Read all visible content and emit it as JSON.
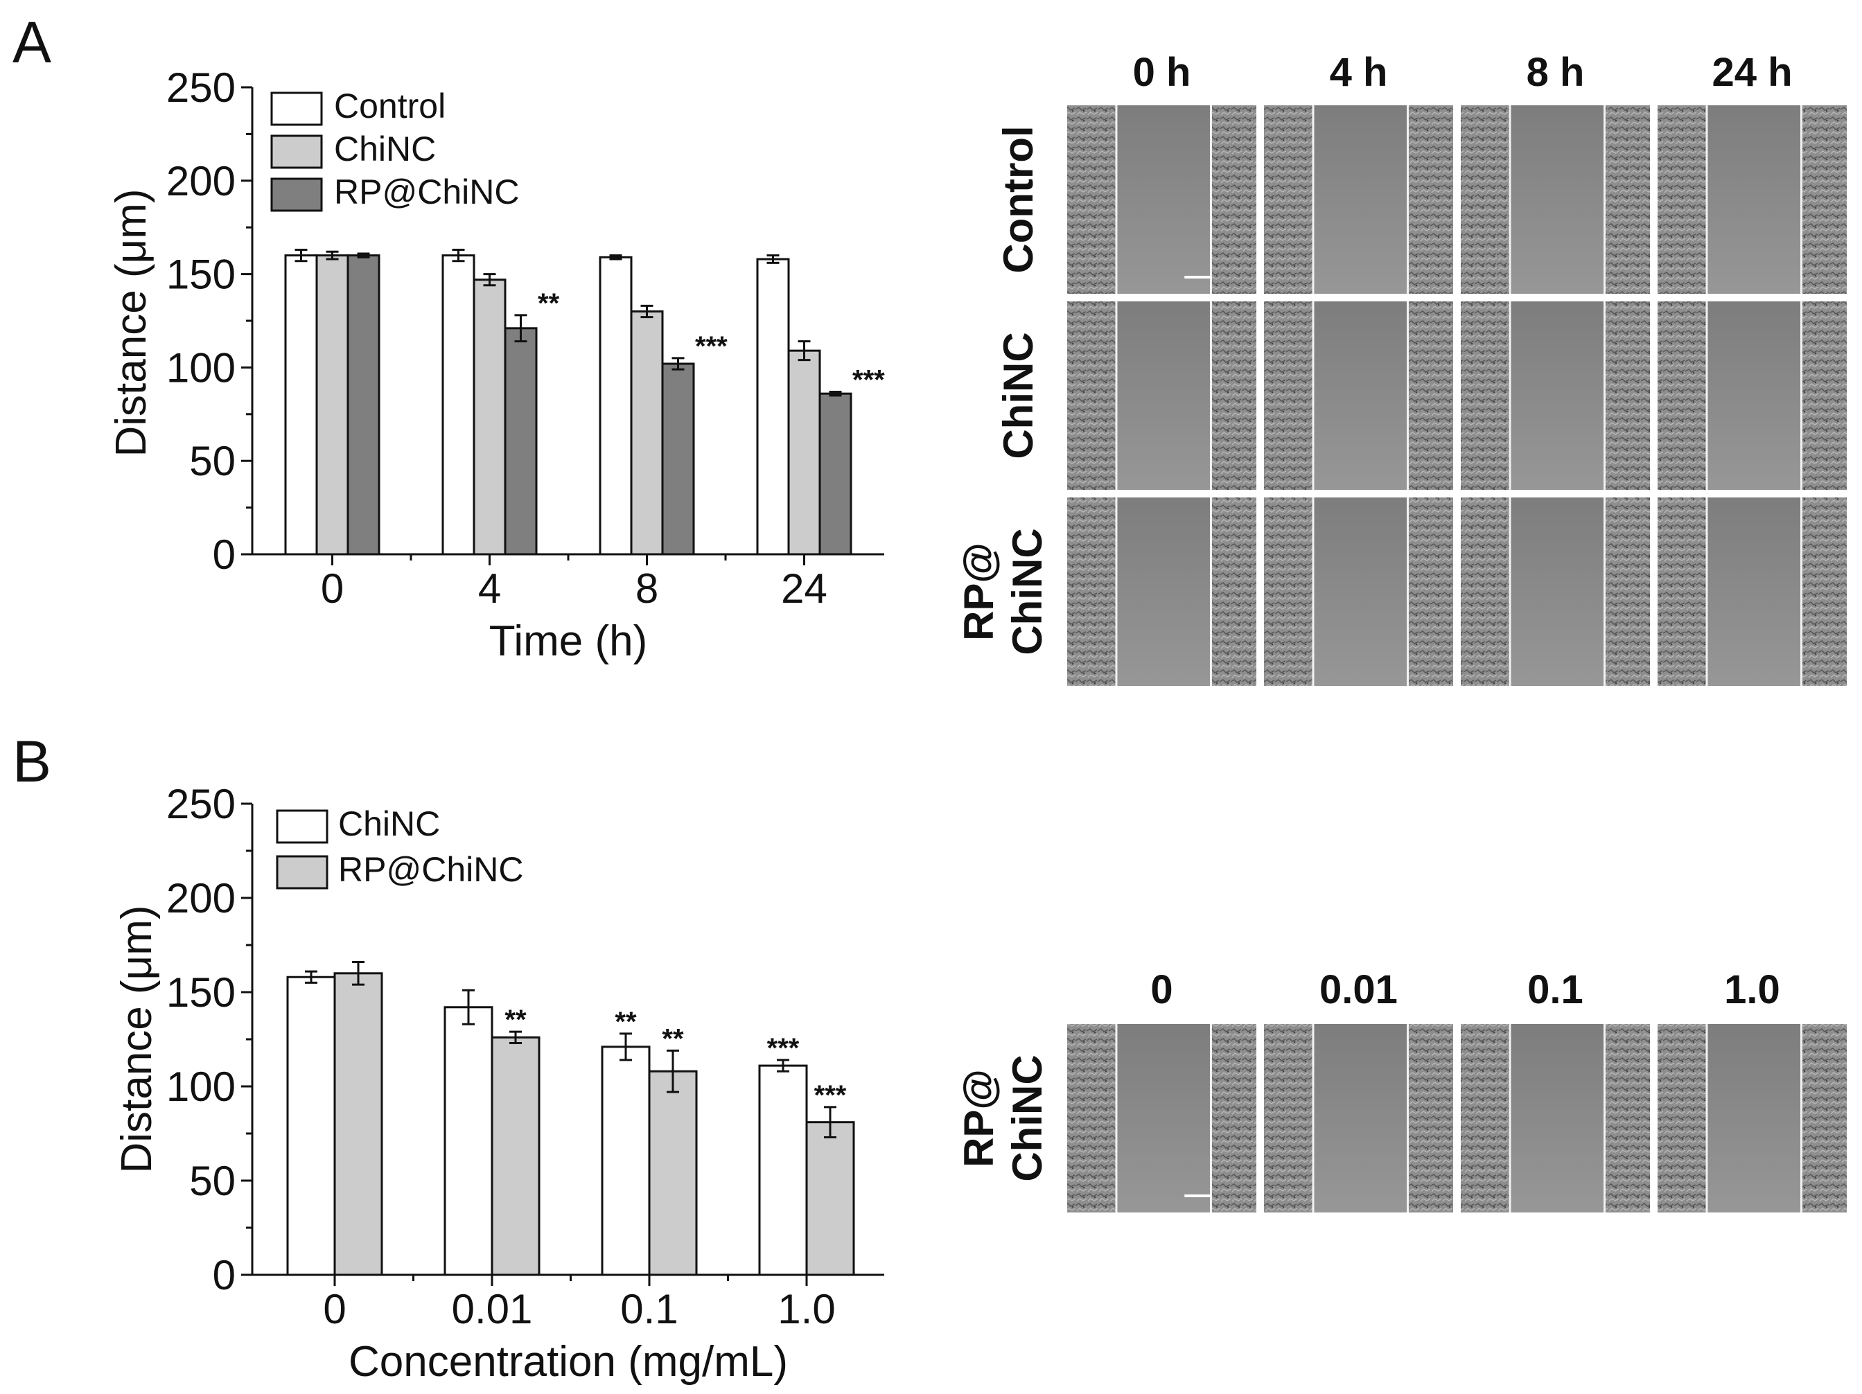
{
  "figure": {
    "panels": [
      "A",
      "B"
    ]
  },
  "chart_data": [
    {
      "type": "bar",
      "panel": "A",
      "categories": [
        "0",
        "4",
        "8",
        "24"
      ],
      "series": [
        {
          "name": "Control",
          "color": "#ffffff",
          "values": [
            160,
            160,
            159,
            158
          ],
          "errors": [
            3,
            3,
            1,
            2
          ],
          "sig": [
            "",
            "",
            "",
            ""
          ]
        },
        {
          "name": "ChiNC",
          "color": "#cccccc",
          "values": [
            160,
            147,
            130,
            109
          ],
          "errors": [
            2,
            3,
            3,
            5
          ],
          "sig": [
            "",
            "",
            "",
            ""
          ]
        },
        {
          "name": "RP@ChiNC",
          "color": "#7f7f7f",
          "values": [
            160,
            121,
            102,
            86
          ],
          "errors": [
            1,
            7,
            3,
            1
          ],
          "sig": [
            "",
            "**",
            "***",
            "***"
          ]
        }
      ],
      "title": "",
      "xlabel": "Time (h)",
      "ylabel": "Distance (μm)",
      "ylim": [
        0,
        250
      ],
      "yticks": [
        "0",
        "50",
        "100",
        "150",
        "200",
        "250"
      ],
      "legend": "top-left"
    },
    {
      "type": "bar",
      "panel": "B",
      "categories": [
        "0",
        "0.01",
        "0.1",
        "1.0"
      ],
      "series": [
        {
          "name": "ChiNC",
          "color": "#ffffff",
          "values": [
            158,
            142,
            121,
            111
          ],
          "errors": [
            3,
            9,
            7,
            3
          ],
          "sig": [
            "",
            "",
            "**",
            "***"
          ]
        },
        {
          "name": "RP@ChiNC",
          "color": "#cccccc",
          "values": [
            160,
            126,
            108,
            81
          ],
          "errors": [
            6,
            3,
            11,
            8
          ],
          "sig": [
            "",
            "**",
            "**",
            "***"
          ]
        }
      ],
      "title": "",
      "xlabel": "Concentration (mg/mL)",
      "ylabel": "Distance (μm)",
      "ylim": [
        0,
        250
      ],
      "yticks": [
        "0",
        "50",
        "100",
        "150",
        "200",
        "250"
      ],
      "legend": "top-left"
    }
  ],
  "micrographs": {
    "A": {
      "columns": [
        "0 h",
        "4 h",
        "8 h",
        "24 h"
      ],
      "rows": [
        {
          "label_lines": [
            "Control"
          ]
        },
        {
          "label_lines": [
            "ChiNC"
          ]
        },
        {
          "label_lines": [
            "RP@",
            "ChiNC"
          ]
        }
      ],
      "tone": "#8a8a8a"
    },
    "B": {
      "columns": [
        "0",
        "0.01",
        "0.1",
        "1.0"
      ],
      "rows": [
        {
          "label_lines": [
            "RP@",
            "ChiNC"
          ]
        }
      ],
      "tone": "#8a8a8a"
    }
  }
}
